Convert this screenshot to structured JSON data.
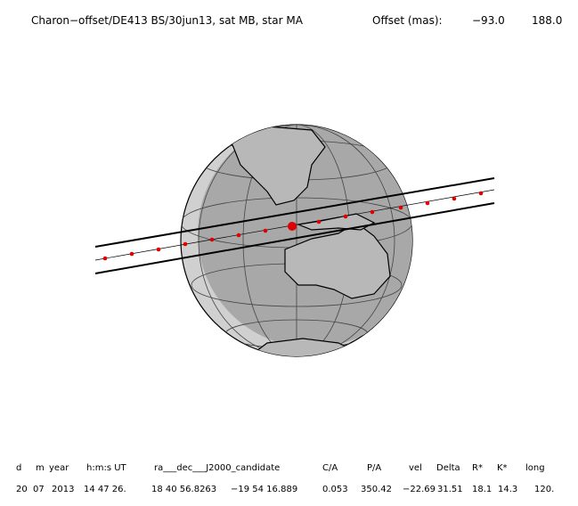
{
  "header": {
    "title": "Charon−offset/DE413 BS/30jun13, sat MB, star MA",
    "offset_label": "Offset (mas):",
    "offset_values": [
      "−93.0",
      "188.0"
    ]
  },
  "table": {
    "columns": [
      "d",
      "m",
      "year",
      "h:m:s UT",
      "ra___dec___J2000_candidate",
      "C/A",
      "P/A",
      "vel",
      "Delta",
      "R*",
      "K*",
      "long"
    ],
    "row": [
      "20",
      "07",
      "2013",
      "14 47 26.",
      "18 40 56.8263",
      "−19 54 16.889",
      "0.053",
      "350.42",
      "−22.69",
      "31.51",
      "18.1",
      "14.3",
      "120."
    ]
  }
}
